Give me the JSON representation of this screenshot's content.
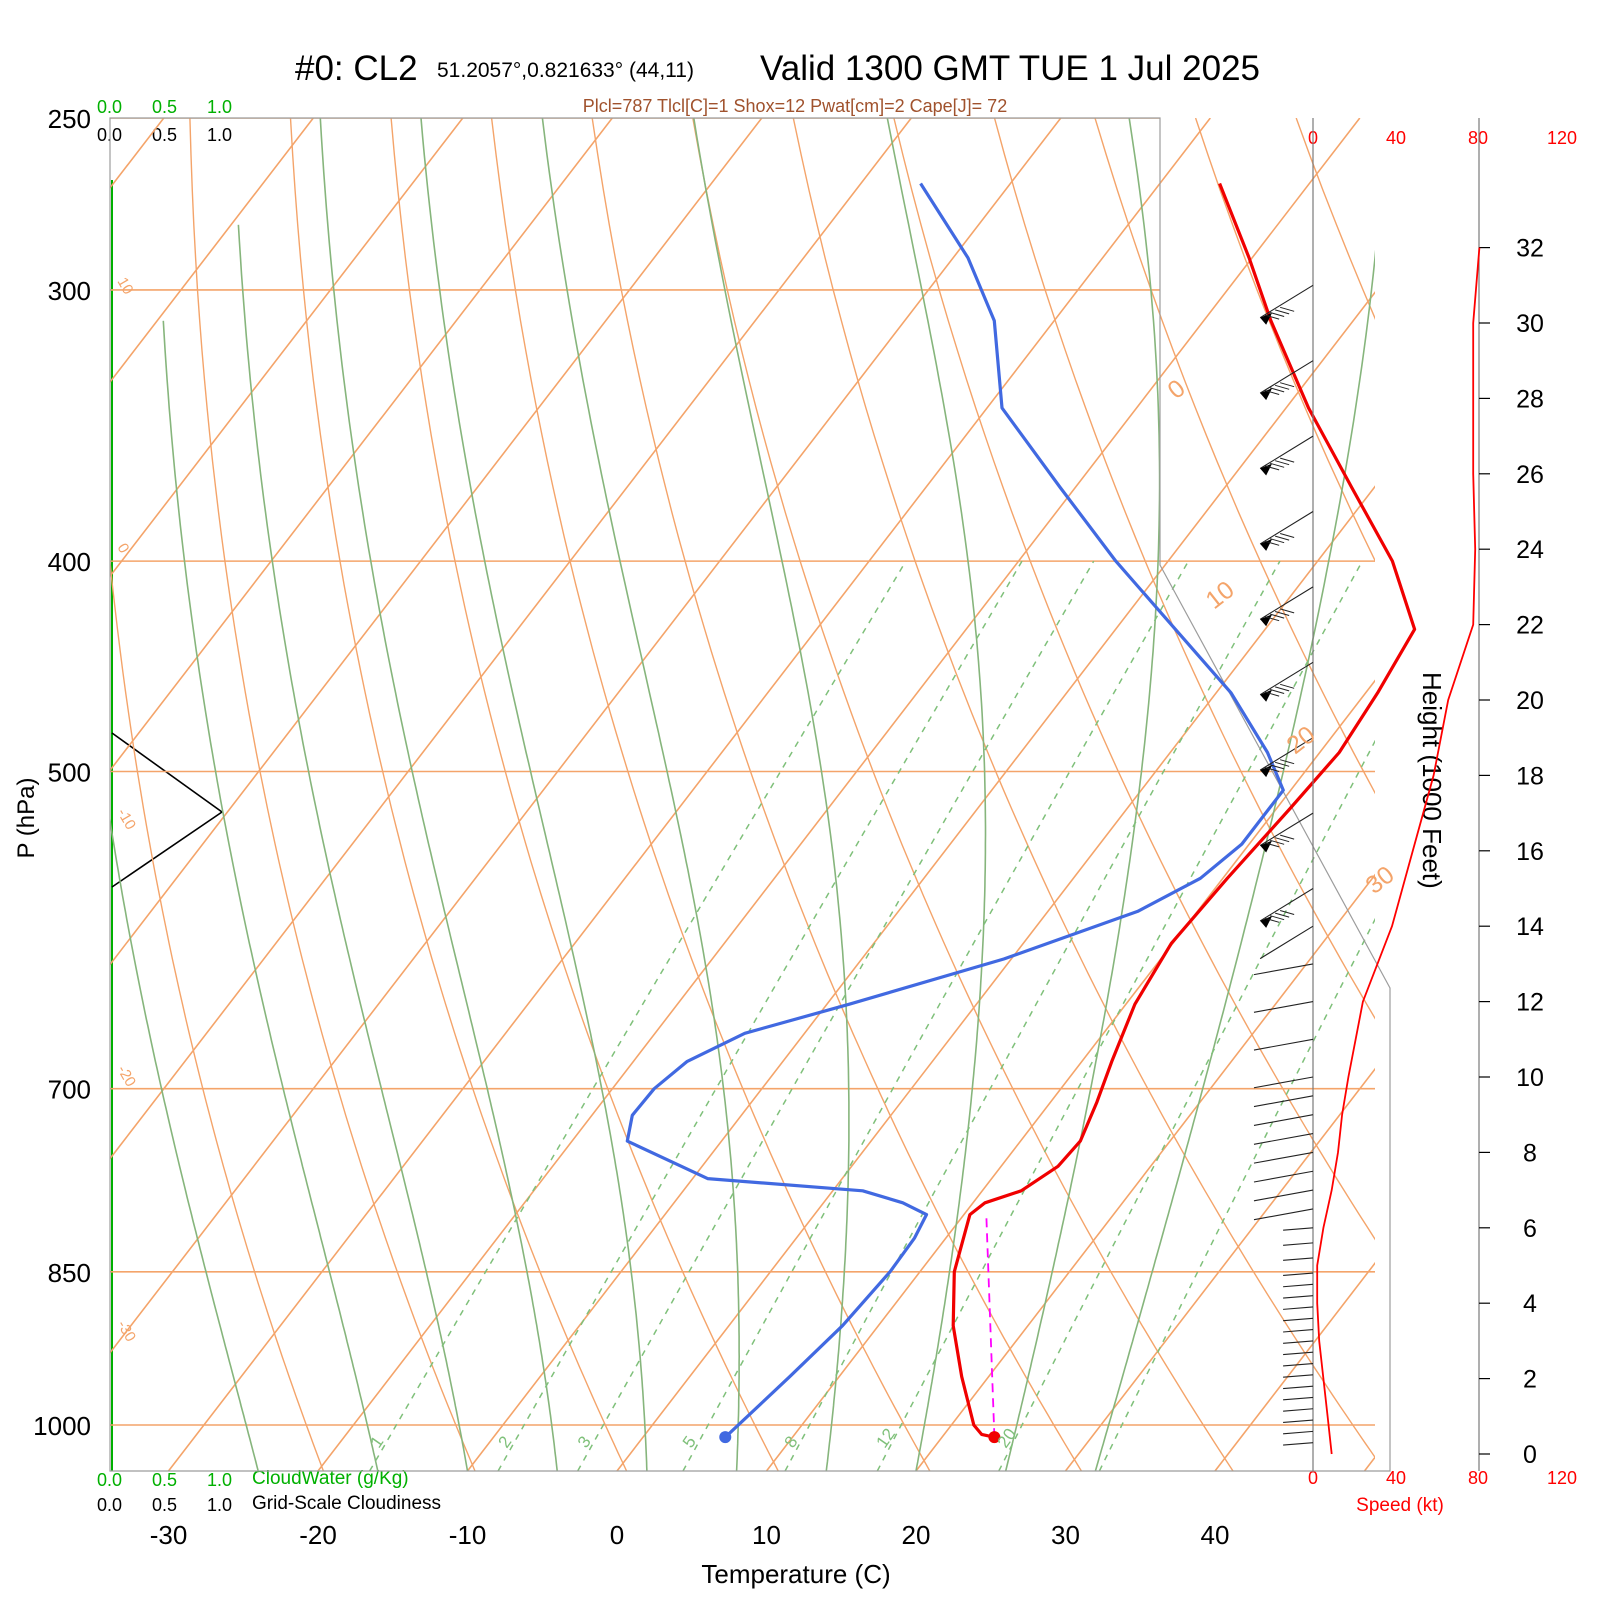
{
  "header": {
    "run_label": "#0: CL2",
    "location": "51.2057°,0.821633° (44,11)",
    "valid": "Valid 1300 GMT TUE 1 Jul 2025",
    "indices": "Plcl=787 Tlcl[C]=1 Shox=12 Pwat[cm]=2 Cape[J]= 72"
  },
  "colors": {
    "isotherm": "#f4a46a",
    "dry_adiabat": "#f4a46a",
    "moist_adiabat": "#86b57c",
    "mixing_ratio": "#7fc07a",
    "temperature": "#f00000",
    "dewpoint": "#4169e1",
    "parcel": "#ff00ff",
    "cloud_green": "#00b000",
    "indices_text": "#a0522d"
  },
  "cloud_axes": {
    "cloudwater_ticks": [
      "0.0",
      "0.5",
      "1.0"
    ],
    "cloudiness_ticks": [
      "0.0",
      "0.5",
      "1.0"
    ],
    "cloudwater_label": "CloudWater (g/Kg)",
    "cloudiness_label": "Grid-Scale Cloudiness"
  },
  "speed_axis": {
    "ticks": [
      "0",
      "40",
      "80",
      "120"
    ],
    "label": "Speed (kt)"
  },
  "height_axis": {
    "label": "Height (1000 Feet)",
    "ticks": [
      "0",
      "2",
      "4",
      "6",
      "8",
      "10",
      "12",
      "14",
      "16",
      "18",
      "20",
      "22",
      "24",
      "26",
      "28",
      "30",
      "32"
    ]
  },
  "chart_data": {
    "type": "line",
    "subtype": "skew-T log-P sounding",
    "xlabel": "Temperature (C)",
    "ylabel": "P (hPa)",
    "x_ticks": [
      -30,
      -20,
      -10,
      0,
      10,
      20,
      30,
      40
    ],
    "y_ticks": [
      250,
      300,
      400,
      500,
      700,
      850,
      1000
    ],
    "p_range": [
      1050,
      250
    ],
    "x_range_at_bottom": [
      -34,
      36
    ],
    "grid": true,
    "isotherm_labels": [
      {
        "t": 10,
        "text": "10"
      },
      {
        "t": 0,
        "text": "0"
      },
      {
        "t": -10,
        "text": "-10"
      },
      {
        "t": -20,
        "text": "-20"
      },
      {
        "t": -30,
        "text": "-30"
      },
      {
        "t": 0,
        "text": "0",
        "side": "right"
      },
      {
        "t": 10,
        "text": "10",
        "side": "right"
      },
      {
        "t": 20,
        "text": "20",
        "side": "right"
      },
      {
        "t": 30,
        "text": "30",
        "side": "right"
      }
    ],
    "mixing_ratio_labels": [
      "1",
      "2",
      "3",
      "5",
      "8",
      "12",
      "20"
    ],
    "temperature_series": {
      "p": [
        1013,
        1010,
        1000,
        950,
        900,
        850,
        800,
        790,
        780,
        760,
        740,
        710,
        680,
        640,
        600,
        560,
        520,
        490,
        460,
        430,
        400,
        370,
        340,
        310,
        290,
        268
      ],
      "t": [
        23.5,
        22.5,
        21.5,
        18.2,
        15.0,
        12.3,
        10.4,
        10.8,
        12.6,
        13.8,
        14.0,
        13.1,
        12.0,
        10.6,
        9.9,
        10.3,
        10.9,
        11.3,
        10.8,
        10.0,
        5.0,
        -1.5,
        -8.5,
        -15.5,
        -20.2,
        -26.0
      ]
    },
    "dewpoint_series": {
      "p": [
        1013,
        950,
        900,
        850,
        820,
        800,
        790,
        780,
        770,
        740,
        720,
        700,
        680,
        660,
        640,
        610,
        580,
        560,
        540,
        510,
        490,
        460,
        430,
        400,
        370,
        340,
        310,
        290,
        268
      ],
      "t": [
        5.5,
        6.7,
        7.6,
        8.0,
        7.9,
        7.5,
        5.3,
        2.0,
        -9.0,
        -16.3,
        -17.3,
        -17.2,
        -16.4,
        -14.0,
        -8.5,
        -0.5,
        6.0,
        8.5,
        9.5,
        9.5,
        6.5,
        1.0,
        -6.0,
        -13.5,
        -21.0,
        -29.0,
        -34.0,
        -39.0,
        -46.0
      ]
    },
    "parcel_series": {
      "p": [
        1013,
        800
      ],
      "t": [
        23.5,
        11.5
      ]
    },
    "wind_speed_series": {
      "height_kft": [
        0,
        1,
        2,
        3,
        4,
        5,
        6,
        7,
        8,
        9,
        10,
        12,
        14,
        16,
        18,
        20,
        22,
        24,
        26,
        28,
        30,
        32
      ],
      "speed_kt": [
        9,
        7,
        5,
        3,
        2,
        2,
        5,
        9,
        12,
        14,
        17,
        24,
        38,
        48,
        58,
        65,
        77,
        78,
        77,
        77,
        77,
        80
      ]
    },
    "wind_barbs_kft": [
      0.3,
      0.6,
      0.9,
      1.2,
      1.5,
      1.8,
      2.1,
      2.4,
      2.7,
      3.0,
      3.3,
      3.6,
      3.9,
      4.2,
      4.5,
      4.8,
      5.2,
      5.6,
      6.0,
      6.5,
      7.0,
      7.5,
      8.0,
      8.5,
      9.0,
      9.5,
      10.0,
      11.0,
      12.0,
      13.0,
      14.0,
      15.0,
      17.0,
      19.0,
      21.0,
      23.0,
      25.0,
      27.0,
      29.0,
      31.0
    ]
  }
}
